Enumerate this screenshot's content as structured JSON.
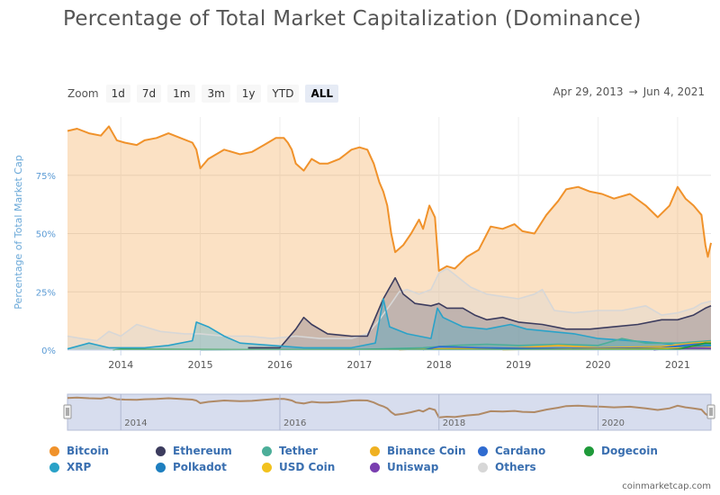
{
  "title": "Percentage of Total Market Capitalization (Dominance)",
  "zoom": {
    "label": "Zoom",
    "buttons": [
      "1d",
      "7d",
      "1m",
      "3m",
      "1y",
      "YTD",
      "ALL"
    ],
    "active": "ALL"
  },
  "date_range": {
    "from": "Apr 29, 2013",
    "sep": "→",
    "to": "Jun 4, 2021"
  },
  "credit": "coinmarketcap.com",
  "colors": {
    "Bitcoin": "#f0922b",
    "Ethereum": "#3c3c5e",
    "Tether": "#4cae99",
    "Binance Coin": "#efb122",
    "Cardano": "#2f6bd0",
    "Dogecoin": "#1f9a3a",
    "XRP": "#2aa2c8",
    "Polkadot": "#1e7fbf",
    "USD Coin": "#f2c21e",
    "Uniswap": "#7a3fb0",
    "Others": "#d7d7d7"
  },
  "chart_data": {
    "type": "area",
    "title": "Percentage of Total Market Capitalization (Dominance)",
    "ylabel": "Percentage of Total Market Cap",
    "xlabel": "",
    "ylim": [
      0,
      100
    ],
    "yticks": [
      "0%",
      "25%",
      "50%",
      "75%"
    ],
    "ytick_values": [
      0,
      25,
      50,
      75
    ],
    "xlim": [
      2013.33,
      2021.42
    ],
    "xticks": [
      "2014",
      "2015",
      "2016",
      "2017",
      "2018",
      "2019",
      "2020",
      "2021"
    ],
    "xtick_values": [
      2014,
      2015,
      2016,
      2017,
      2018,
      2019,
      2020,
      2021
    ],
    "navigator_ticks": [
      "2014",
      "2016",
      "2018",
      "2020"
    ],
    "legend_position": "bottom",
    "series": [
      {
        "name": "Bitcoin",
        "values": [
          [
            2013.33,
            94
          ],
          [
            2013.45,
            95
          ],
          [
            2013.6,
            93
          ],
          [
            2013.75,
            92
          ],
          [
            2013.85,
            96
          ],
          [
            2013.95,
            90
          ],
          [
            2014.05,
            89
          ],
          [
            2014.2,
            88
          ],
          [
            2014.3,
            90
          ],
          [
            2014.45,
            91
          ],
          [
            2014.6,
            93
          ],
          [
            2014.75,
            91
          ],
          [
            2014.9,
            89
          ],
          [
            2014.95,
            86
          ],
          [
            2015.0,
            78
          ],
          [
            2015.1,
            82
          ],
          [
            2015.3,
            86
          ],
          [
            2015.5,
            84
          ],
          [
            2015.65,
            85
          ],
          [
            2015.8,
            88
          ],
          [
            2015.95,
            91
          ],
          [
            2016.05,
            91
          ],
          [
            2016.1,
            89
          ],
          [
            2016.15,
            86
          ],
          [
            2016.2,
            80
          ],
          [
            2016.3,
            77
          ],
          [
            2016.4,
            82
          ],
          [
            2016.5,
            80
          ],
          [
            2016.6,
            80
          ],
          [
            2016.75,
            82
          ],
          [
            2016.9,
            86
          ],
          [
            2017.0,
            87
          ],
          [
            2017.1,
            86
          ],
          [
            2017.18,
            80
          ],
          [
            2017.25,
            72
          ],
          [
            2017.3,
            68
          ],
          [
            2017.35,
            62
          ],
          [
            2017.4,
            50
          ],
          [
            2017.45,
            42
          ],
          [
            2017.55,
            45
          ],
          [
            2017.65,
            50
          ],
          [
            2017.75,
            56
          ],
          [
            2017.8,
            52
          ],
          [
            2017.88,
            62
          ],
          [
            2017.95,
            57
          ],
          [
            2018.0,
            34
          ],
          [
            2018.1,
            36
          ],
          [
            2018.2,
            35
          ],
          [
            2018.35,
            40
          ],
          [
            2018.5,
            43
          ],
          [
            2018.65,
            53
          ],
          [
            2018.8,
            52
          ],
          [
            2018.95,
            54
          ],
          [
            2019.05,
            51
          ],
          [
            2019.2,
            50
          ],
          [
            2019.35,
            58
          ],
          [
            2019.5,
            64
          ],
          [
            2019.6,
            69
          ],
          [
            2019.75,
            70
          ],
          [
            2019.9,
            68
          ],
          [
            2020.05,
            67
          ],
          [
            2020.2,
            65
          ],
          [
            2020.4,
            67
          ],
          [
            2020.6,
            62
          ],
          [
            2020.75,
            57
          ],
          [
            2020.9,
            62
          ],
          [
            2021.0,
            70
          ],
          [
            2021.1,
            65
          ],
          [
            2021.2,
            62
          ],
          [
            2021.3,
            58
          ],
          [
            2021.35,
            45
          ],
          [
            2021.38,
            40
          ],
          [
            2021.42,
            46
          ]
        ]
      },
      {
        "name": "Others",
        "values": [
          [
            2013.33,
            6
          ],
          [
            2013.5,
            5
          ],
          [
            2013.7,
            4
          ],
          [
            2013.85,
            8
          ],
          [
            2014.0,
            6
          ],
          [
            2014.2,
            11
          ],
          [
            2014.5,
            8
          ],
          [
            2014.8,
            7
          ],
          [
            2015.0,
            7
          ],
          [
            2015.3,
            6
          ],
          [
            2015.6,
            6
          ],
          [
            2015.9,
            5
          ],
          [
            2016.2,
            6
          ],
          [
            2016.5,
            5
          ],
          [
            2016.9,
            5
          ],
          [
            2017.1,
            7
          ],
          [
            2017.25,
            13
          ],
          [
            2017.4,
            20
          ],
          [
            2017.5,
            25
          ],
          [
            2017.6,
            26
          ],
          [
            2017.75,
            24
          ],
          [
            2017.9,
            26
          ],
          [
            2018.0,
            33
          ],
          [
            2018.1,
            35
          ],
          [
            2018.25,
            31
          ],
          [
            2018.4,
            27
          ],
          [
            2018.6,
            24
          ],
          [
            2018.8,
            23
          ],
          [
            2019.0,
            22
          ],
          [
            2019.2,
            24
          ],
          [
            2019.3,
            26
          ],
          [
            2019.45,
            17
          ],
          [
            2019.7,
            16
          ],
          [
            2020.0,
            17
          ],
          [
            2020.3,
            17
          ],
          [
            2020.6,
            19
          ],
          [
            2020.8,
            15
          ],
          [
            2021.0,
            16
          ],
          [
            2021.2,
            18
          ],
          [
            2021.3,
            20
          ],
          [
            2021.42,
            21
          ]
        ]
      },
      {
        "name": "Ethereum",
        "values": [
          [
            2015.6,
            1
          ],
          [
            2016.0,
            1
          ],
          [
            2016.2,
            9
          ],
          [
            2016.3,
            14
          ],
          [
            2016.4,
            11
          ],
          [
            2016.6,
            7
          ],
          [
            2016.9,
            6
          ],
          [
            2017.1,
            6
          ],
          [
            2017.3,
            22
          ],
          [
            2017.45,
            31
          ],
          [
            2017.55,
            24
          ],
          [
            2017.7,
            20
          ],
          [
            2017.9,
            19
          ],
          [
            2018.0,
            20
          ],
          [
            2018.1,
            18
          ],
          [
            2018.3,
            18
          ],
          [
            2018.45,
            15
          ],
          [
            2018.6,
            13
          ],
          [
            2018.8,
            14
          ],
          [
            2019.0,
            12
          ],
          [
            2019.3,
            11
          ],
          [
            2019.6,
            9
          ],
          [
            2019.9,
            9
          ],
          [
            2020.2,
            10
          ],
          [
            2020.5,
            11
          ],
          [
            2020.8,
            13
          ],
          [
            2021.0,
            13
          ],
          [
            2021.2,
            15
          ],
          [
            2021.35,
            18
          ],
          [
            2021.42,
            19
          ]
        ]
      },
      {
        "name": "XRP",
        "values": [
          [
            2013.33,
            0.5
          ],
          [
            2013.6,
            3
          ],
          [
            2013.85,
            1
          ],
          [
            2014.3,
            1
          ],
          [
            2014.6,
            2
          ],
          [
            2014.9,
            4
          ],
          [
            2014.95,
            12
          ],
          [
            2015.1,
            10
          ],
          [
            2015.3,
            6
          ],
          [
            2015.5,
            3
          ],
          [
            2015.9,
            2
          ],
          [
            2016.3,
            1
          ],
          [
            2016.9,
            1
          ],
          [
            2017.2,
            3
          ],
          [
            2017.3,
            22
          ],
          [
            2017.38,
            10
          ],
          [
            2017.6,
            7
          ],
          [
            2017.9,
            5
          ],
          [
            2017.98,
            18
          ],
          [
            2018.05,
            14
          ],
          [
            2018.3,
            10
          ],
          [
            2018.6,
            9
          ],
          [
            2018.9,
            11
          ],
          [
            2019.1,
            9
          ],
          [
            2019.4,
            8
          ],
          [
            2019.7,
            7
          ],
          [
            2020.0,
            5
          ],
          [
            2020.4,
            4
          ],
          [
            2020.8,
            3
          ],
          [
            2021.0,
            2
          ],
          [
            2021.25,
            3
          ],
          [
            2021.42,
            2
          ]
        ]
      },
      {
        "name": "Tether",
        "values": [
          [
            2015.0,
            0
          ],
          [
            2017.0,
            0.3
          ],
          [
            2017.8,
            1
          ],
          [
            2018.2,
            2
          ],
          [
            2018.6,
            2.5
          ],
          [
            2019.0,
            2
          ],
          [
            2019.5,
            2.5
          ],
          [
            2020.0,
            2
          ],
          [
            2020.3,
            5
          ],
          [
            2020.6,
            3
          ],
          [
            2021.0,
            3
          ],
          [
            2021.42,
            4
          ]
        ]
      },
      {
        "name": "Binance Coin",
        "values": [
          [
            2017.5,
            0
          ],
          [
            2018.0,
            0.5
          ],
          [
            2019.0,
            1
          ],
          [
            2019.5,
            2
          ],
          [
            2020.0,
            1
          ],
          [
            2020.8,
            1.5
          ],
          [
            2021.2,
            3
          ],
          [
            2021.42,
            3.5
          ]
        ]
      },
      {
        "name": "Cardano",
        "values": [
          [
            2017.8,
            0
          ],
          [
            2018.0,
            1.5
          ],
          [
            2018.5,
            1
          ],
          [
            2019.0,
            0.8
          ],
          [
            2020.0,
            0.7
          ],
          [
            2020.8,
            1
          ],
          [
            2021.2,
            2.5
          ],
          [
            2021.42,
            3
          ]
        ]
      },
      {
        "name": "Dogecoin",
        "values": [
          [
            2013.9,
            0
          ],
          [
            2014.0,
            0.3
          ],
          [
            2016.0,
            0.1
          ],
          [
            2018.0,
            0.2
          ],
          [
            2020.0,
            0.2
          ],
          [
            2021.0,
            0.3
          ],
          [
            2021.35,
            3
          ],
          [
            2021.42,
            2.8
          ]
        ]
      },
      {
        "name": "Polkadot",
        "values": [
          [
            2020.7,
            0
          ],
          [
            2020.9,
            0.8
          ],
          [
            2021.2,
            1.8
          ],
          [
            2021.42,
            1.6
          ]
        ]
      },
      {
        "name": "USD Coin",
        "values": [
          [
            2018.8,
            0
          ],
          [
            2019.5,
            0.3
          ],
          [
            2020.5,
            0.5
          ],
          [
            2021.0,
            0.9
          ],
          [
            2021.42,
            1.2
          ]
        ]
      },
      {
        "name": "Uniswap",
        "values": [
          [
            2020.7,
            0
          ],
          [
            2020.9,
            0.3
          ],
          [
            2021.2,
            0.9
          ],
          [
            2021.42,
            0.8
          ]
        ]
      }
    ]
  },
  "legend": [
    [
      "Bitcoin",
      "Ethereum",
      "Tether",
      "Binance Coin",
      "Cardano",
      "Dogecoin"
    ],
    [
      "XRP",
      "Polkadot",
      "USD Coin",
      "Uniswap",
      "Others"
    ]
  ]
}
